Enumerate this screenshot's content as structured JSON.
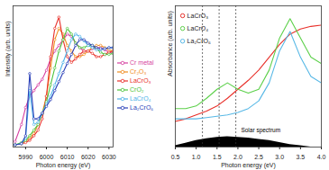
{
  "chart_data": [
    {
      "type": "line",
      "x_label": "Photon energy (eV)",
      "y_label": "Intensity (arb. units)",
      "x": [
        5985,
        5988,
        5990,
        5992,
        5994,
        5996,
        5998,
        6000,
        6002,
        6004,
        6006,
        6008,
        6010,
        6012,
        6014,
        6016,
        6018,
        6020,
        6022,
        6024,
        6026,
        6028,
        6030,
        6032
      ],
      "xlim": [
        5984,
        6032
      ],
      "xticks": [
        5990,
        6000,
        6010,
        6020,
        6030
      ],
      "ylim": [
        0,
        1.25
      ],
      "tick_labels": "x",
      "marker": "circle",
      "legend": "right",
      "series": [
        {
          "name": "Cr metal",
          "color": "#d63fa0",
          "values": [
            0.05,
            0.2,
            0.35,
            0.45,
            0.5,
            0.55,
            0.6,
            0.68,
            0.78,
            0.85,
            0.9,
            0.95,
            1.0,
            0.98,
            0.92,
            0.88,
            0.85,
            0.85,
            0.87,
            0.88,
            0.88,
            0.86,
            0.84,
            0.83
          ]
        },
        {
          "name": "Cr₂O₃",
          "color": "#f08c1e",
          "values": [
            0.02,
            0.03,
            0.05,
            0.08,
            0.12,
            0.2,
            0.3,
            0.45,
            0.7,
            0.95,
            1.05,
            1.0,
            0.9,
            0.85,
            0.8,
            0.8,
            0.82,
            0.85,
            0.88,
            0.9,
            0.9,
            0.88,
            0.86,
            0.85
          ]
        },
        {
          "name": "LaCrO₃",
          "color": "#e8302a",
          "values": [
            0.02,
            0.03,
            0.04,
            0.06,
            0.1,
            0.15,
            0.25,
            0.45,
            0.8,
            1.05,
            1.15,
            0.95,
            0.8,
            0.75,
            0.78,
            0.82,
            0.85,
            0.85,
            0.83,
            0.8,
            0.8,
            0.82,
            0.84,
            0.85
          ]
        },
        {
          "name": "CrO₂",
          "color": "#4cc43c",
          "values": [
            0.02,
            0.04,
            0.06,
            0.1,
            0.15,
            0.2,
            0.3,
            0.4,
            0.55,
            0.7,
            0.85,
            0.95,
            1.05,
            1.0,
            0.92,
            0.88,
            0.88,
            0.9,
            0.9,
            0.87,
            0.84,
            0.82,
            0.82,
            0.83
          ]
        },
        {
          "name": "LaCrO₄",
          "color": "#4fb3e8",
          "values": [
            0.02,
            0.03,
            0.08,
            0.5,
            0.2,
            0.22,
            0.3,
            0.38,
            0.45,
            0.55,
            0.65,
            0.75,
            0.85,
            0.95,
            1.0,
            0.98,
            0.94,
            0.9,
            0.88,
            0.86,
            0.86,
            0.87,
            0.88,
            0.88
          ]
        },
        {
          "name": "La₂CrO₆",
          "color": "#2a3fb8",
          "values": [
            0.02,
            0.03,
            0.1,
            0.65,
            0.25,
            0.25,
            0.3,
            0.36,
            0.42,
            0.5,
            0.58,
            0.66,
            0.74,
            0.82,
            0.9,
            0.95,
            0.95,
            0.92,
            0.9,
            0.88,
            0.87,
            0.87,
            0.88,
            0.88
          ]
        }
      ]
    },
    {
      "type": "line",
      "x_label": "Photon energy (eV)",
      "y_label": "Absorbance (arb. units)",
      "x": [
        0.5,
        0.75,
        1.0,
        1.25,
        1.5,
        1.75,
        2.0,
        2.25,
        2.5,
        2.75,
        3.0,
        3.25,
        3.5,
        3.75,
        4.0
      ],
      "xlim": [
        0.5,
        4.0
      ],
      "xticks": [
        0.5,
        {
          "value": 1,
          "label": "1.0"
        },
        1.5,
        {
          "value": 2,
          "label": "2.0"
        },
        2.5,
        {
          "value": 3,
          "label": "3.0"
        },
        3.5,
        {
          "value": 4,
          "label": "4.0"
        }
      ],
      "ylim": [
        0,
        1.1
      ],
      "tick_labels": "x",
      "marker": "circle",
      "legend": "top-left",
      "series": [
        {
          "name": "LaCrO₃",
          "color": "#e8302a",
          "values": [
            0.2,
            0.22,
            0.25,
            0.28,
            0.32,
            0.38,
            0.45,
            0.52,
            0.6,
            0.7,
            0.8,
            0.88,
            0.92,
            0.94,
            0.95
          ]
        },
        {
          "name": "LaCrO₄",
          "color": "#5cd04a",
          "values": [
            0.3,
            0.3,
            0.32,
            0.38,
            0.45,
            0.5,
            0.45,
            0.42,
            0.45,
            0.6,
            0.85,
            1.0,
            0.85,
            0.7,
            0.65
          ]
        },
        {
          "name": "La₂CrO₆",
          "color": "#57b8e6",
          "values": [
            0.22,
            0.22,
            0.22,
            0.23,
            0.24,
            0.25,
            0.27,
            0.3,
            0.36,
            0.5,
            0.75,
            0.9,
            0.7,
            0.55,
            0.5
          ]
        }
      ],
      "solar_spectrum": {
        "name": "Solar spectrum",
        "type": "area",
        "color": "#000000",
        "values": [
          0.01,
          0.03,
          0.05,
          0.065,
          0.075,
          0.08,
          0.075,
          0.07,
          0.06,
          0.05,
          0.035,
          0.02,
          0.01,
          0,
          0
        ]
      },
      "reference_lines": {
        "x": [
          1.15,
          1.55,
          1.95
        ],
        "line_style": "dashed",
        "color": "#333333"
      }
    }
  ]
}
